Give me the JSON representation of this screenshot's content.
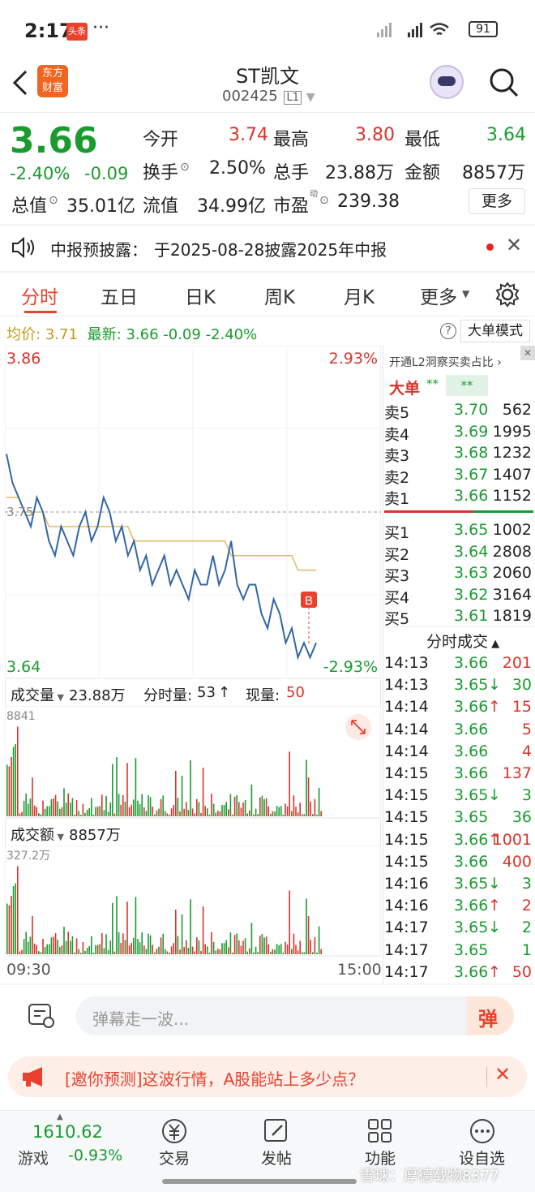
{
  "status": {
    "time": "2:17",
    "dots": "···",
    "battery": "91",
    "app_badge": "头条"
  },
  "header": {
    "title": "ST凯文",
    "code": "002425",
    "level": "L1",
    "logo_line1": "东方",
    "logo_line2": "财富"
  },
  "quote": {
    "price": "3.66",
    "change_pct": "-2.40%",
    "change": "-0.09",
    "open_label": "今开",
    "open": "3.74",
    "high_label": "最高",
    "high": "3.80",
    "low_label": "最低",
    "low": "3.64",
    "turnover_label": "换手",
    "turnover": "2.50%",
    "volume_label": "总手",
    "volume": "23.88万",
    "amount_label": "金额",
    "amount": "8857万",
    "mcap_label": "总值",
    "mcap": "35.01亿",
    "float_label": "流值",
    "float": "34.99亿",
    "pe_label": "市盈",
    "pe_sup": "动",
    "pe": "239.38",
    "more": "更多"
  },
  "notice": {
    "label": "中报预披露：",
    "text": "于2025-08-28披露2025年中报"
  },
  "tabs": [
    "分时",
    "五日",
    "日K",
    "周K",
    "月K",
    "更多"
  ],
  "info_line": {
    "avg_label": "均价:",
    "avg": "3.71",
    "latest_label": "最新:",
    "latest": "3.66",
    "change": "-0.09",
    "pct": "-2.40%",
    "mode_btn": "大单模式"
  },
  "chart_labels": {
    "top_price": "3.86",
    "top_pct": "2.93%",
    "mid_price": "3.75",
    "bottom_price": "3.64",
    "bottom_pct": "-2.93%",
    "buy_marker": "B"
  },
  "volume_panel": {
    "label": "成交量",
    "total": "23.88万",
    "per_label": "分时量:",
    "per": "53",
    "now_label": "现量:",
    "now": "50",
    "max": "8841"
  },
  "amount_panel": {
    "label": "成交额",
    "total": "8857万",
    "max": "327.2万"
  },
  "time_axis": {
    "start": "09:30",
    "end": "15:00"
  },
  "orderbook": {
    "promo": "开通L2洞察买卖占比",
    "big_label": "大单",
    "big_val": "**",
    "big_val2": "**",
    "asks": [
      {
        "label": "卖5",
        "price": "3.70",
        "vol": "562"
      },
      {
        "label": "卖4",
        "price": "3.69",
        "vol": "1995"
      },
      {
        "label": "卖3",
        "price": "3.68",
        "vol": "1232"
      },
      {
        "label": "卖2",
        "price": "3.67",
        "vol": "1407"
      },
      {
        "label": "卖1",
        "price": "3.66",
        "vol": "1152"
      }
    ],
    "bids": [
      {
        "label": "买1",
        "price": "3.65",
        "vol": "1002"
      },
      {
        "label": "买2",
        "price": "3.64",
        "vol": "2808"
      },
      {
        "label": "买3",
        "price": "3.63",
        "vol": "2060"
      },
      {
        "label": "买4",
        "price": "3.62",
        "vol": "3164"
      },
      {
        "label": "买5",
        "price": "3.61",
        "vol": "1819"
      }
    ]
  },
  "trades_title": "分时成交",
  "trades": [
    {
      "t": "14:13",
      "p": "3.66",
      "a": "",
      "v": "201",
      "c": "red"
    },
    {
      "t": "14:13",
      "p": "3.65",
      "a": "↓",
      "v": "30",
      "c": "green"
    },
    {
      "t": "14:14",
      "p": "3.66",
      "a": "↑",
      "v": "15",
      "c": "red"
    },
    {
      "t": "14:14",
      "p": "3.66",
      "a": "",
      "v": "5",
      "c": "red"
    },
    {
      "t": "14:14",
      "p": "3.66",
      "a": "",
      "v": "4",
      "c": "red"
    },
    {
      "t": "14:15",
      "p": "3.66",
      "a": "",
      "v": "137",
      "c": "red"
    },
    {
      "t": "14:15",
      "p": "3.65",
      "a": "↓",
      "v": "3",
      "c": "green"
    },
    {
      "t": "14:15",
      "p": "3.65",
      "a": "",
      "v": "36",
      "c": "green"
    },
    {
      "t": "14:15",
      "p": "3.66",
      "a": "↑",
      "v": "1001",
      "c": "red"
    },
    {
      "t": "14:15",
      "p": "3.66",
      "a": "",
      "v": "400",
      "c": "red"
    },
    {
      "t": "14:16",
      "p": "3.65",
      "a": "↓",
      "v": "3",
      "c": "green"
    },
    {
      "t": "14:16",
      "p": "3.66",
      "a": "↑",
      "v": "2",
      "c": "red"
    },
    {
      "t": "14:17",
      "p": "3.65",
      "a": "↓",
      "v": "2",
      "c": "green"
    },
    {
      "t": "14:17",
      "p": "3.65",
      "a": "",
      "v": "1",
      "c": "green"
    },
    {
      "t": "14:17",
      "p": "3.66",
      "a": "↑",
      "v": "50",
      "c": "red"
    }
  ],
  "danmu": {
    "placeholder": "弹幕走一波...",
    "send": "弹"
  },
  "banner": {
    "text": "[邀你预测]这波行情，A股能站上多少点？"
  },
  "bottom_nav": {
    "index_val": "1610.62",
    "index_label": "游戏",
    "index_pct": "-0.93%",
    "items": [
      "交易",
      "发帖",
      "功能",
      "设自选"
    ]
  },
  "watermark": "雪球：厚德载物8377",
  "chart_data": {
    "type": "line",
    "series": [
      {
        "name": "最新",
        "values": [
          3.79,
          3.77,
          3.76,
          3.75,
          3.74,
          3.76,
          3.75,
          3.73,
          3.72,
          3.74,
          3.73,
          3.72,
          3.74,
          3.75,
          3.73,
          3.74,
          3.76,
          3.75,
          3.73,
          3.74,
          3.72,
          3.73,
          3.71,
          3.72,
          3.7,
          3.71,
          3.72,
          3.7,
          3.71,
          3.7,
          3.69,
          3.71,
          3.7,
          3.7,
          3.72,
          3.7,
          3.71,
          3.73,
          3.7,
          3.69,
          3.7,
          3.7,
          3.68,
          3.67,
          3.69,
          3.68,
          3.66,
          3.67,
          3.65,
          3.66,
          3.65,
          3.66
        ]
      },
      {
        "name": "均价",
        "values": [
          3.76,
          3.76,
          3.76,
          3.75,
          3.75,
          3.75,
          3.75,
          3.74,
          3.74,
          3.74,
          3.74,
          3.74,
          3.74,
          3.74,
          3.74,
          3.74,
          3.74,
          3.74,
          3.74,
          3.74,
          3.74,
          3.73,
          3.73,
          3.73,
          3.73,
          3.73,
          3.73,
          3.73,
          3.73,
          3.73,
          3.73,
          3.73,
          3.73,
          3.73,
          3.73,
          3.73,
          3.73,
          3.72,
          3.72,
          3.72,
          3.72,
          3.72,
          3.72,
          3.72,
          3.72,
          3.72,
          3.72,
          3.72,
          3.71,
          3.71,
          3.71,
          3.71
        ]
      }
    ],
    "ylim": [
      3.64,
      3.86
    ],
    "ref": 3.75
  }
}
